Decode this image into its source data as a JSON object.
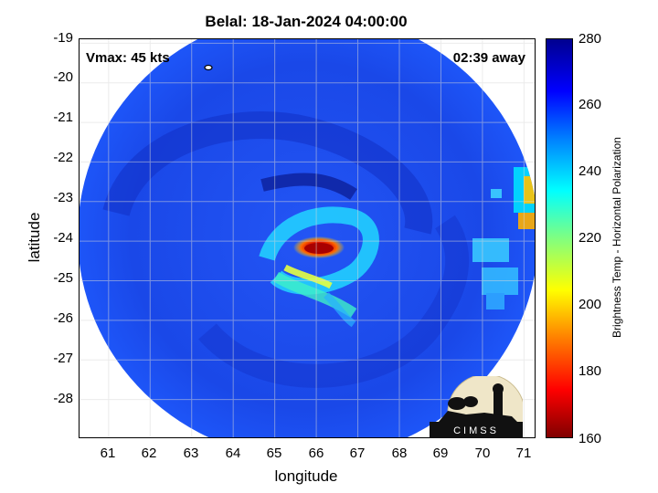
{
  "title": "Belal: 18-Jan-2024 04:00:00",
  "vmax_label": "Vmax: 45 kts",
  "time_away_label": "02:39 away",
  "x_axis": {
    "label": "longitude",
    "ticks": [
      "61",
      "62",
      "63",
      "64",
      "65",
      "66",
      "67",
      "68",
      "69",
      "70",
      "71"
    ],
    "range": [
      60.3,
      71.3
    ]
  },
  "y_axis": {
    "label": "latitude",
    "ticks": [
      "-19",
      "-20",
      "-21",
      "-22",
      "-23",
      "-24",
      "-25",
      "-26",
      "-27",
      "-28"
    ],
    "range": [
      -29.0,
      -18.9
    ]
  },
  "colorbar": {
    "label": "Brightness Temp - Horizontal Polarization",
    "ticks": [
      "280",
      "260",
      "240",
      "220",
      "200",
      "180",
      "160"
    ],
    "range": [
      160,
      280
    ],
    "colormap": "jet"
  },
  "logo": {
    "text": "CIMSS"
  },
  "storm_center": {
    "lon": 66.0,
    "lat": -24.2
  },
  "colors": {
    "background_swath": "#1a4ef0",
    "cold_core": "#b00000",
    "warm_ring": "#00e0ff"
  }
}
